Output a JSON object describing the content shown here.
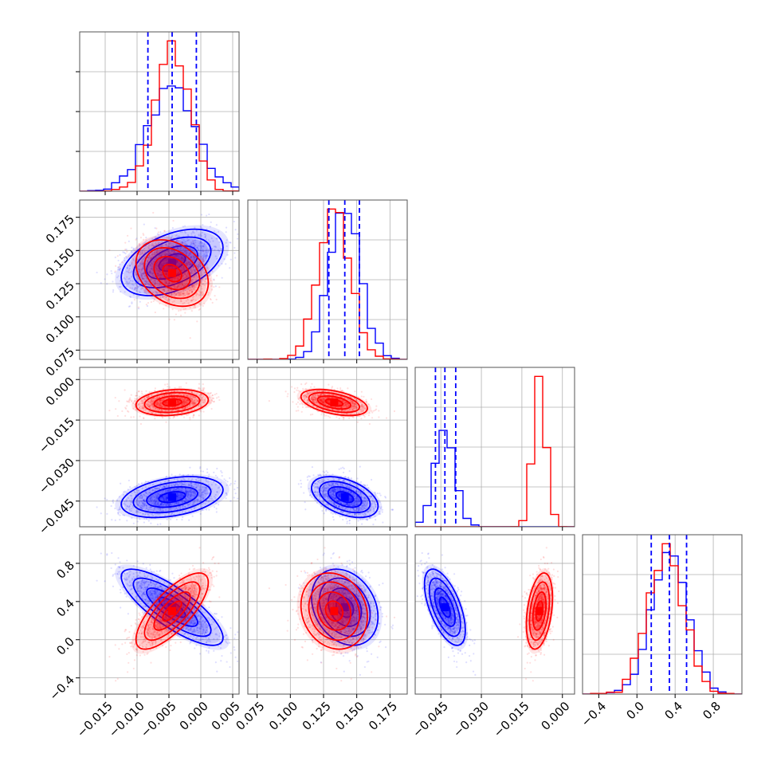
{
  "chart_data": {
    "type": "corner",
    "colors": {
      "blue": "#0000ff",
      "red": "#ff0000"
    },
    "parameters": [
      {
        "range": [
          -0.019,
          0.006
        ],
        "ticks": [
          -0.015,
          -0.01,
          -0.005,
          0.0,
          0.005
        ],
        "tick_labels": [
          "−0.015",
          "−0.010",
          "−0.005",
          "0.000",
          "0.005"
        ]
      },
      {
        "range": [
          0.068,
          0.188
        ],
        "ticks": [
          0.075,
          0.1,
          0.125,
          0.15,
          0.175
        ],
        "tick_labels": [
          "0.075",
          "0.100",
          "0.125",
          "0.150",
          "0.175"
        ]
      },
      {
        "range": [
          -0.0545,
          0.0045
        ],
        "ticks": [
          -0.045,
          -0.03,
          -0.015,
          0.0
        ],
        "tick_labels": [
          "−0.045",
          "−0.030",
          "−0.015",
          "0.000"
        ]
      },
      {
        "range": [
          -0.57,
          1.1
        ],
        "ticks": [
          -0.4,
          0.0,
          0.4,
          0.8
        ],
        "tick_labels": [
          "−0.4",
          "0.0",
          "0.4",
          "0.8"
        ]
      }
    ],
    "series": [
      {
        "name": "",
        "color": "#0000ff",
        "mean": [
          -0.0045,
          0.141,
          -0.0435,
          0.34
        ],
        "sd": [
          0.0038,
          0.0119,
          0.0036,
          0.19
        ],
        "corr": [
          [
            1.0,
            0.45,
            0.35,
            -0.8
          ],
          [
            0.45,
            1.0,
            -0.45,
            -0.25
          ],
          [
            0.35,
            -0.45,
            1.0,
            -0.6
          ],
          [
            -0.8,
            -0.25,
            -0.6,
            1.0
          ]
        ],
        "quantile_lines": [
          [
            -0.0083,
            -0.0045,
            -0.0007
          ],
          [
            0.129,
            0.141,
            0.152
          ],
          [
            -0.047,
            -0.0435,
            -0.0395
          ],
          [
            0.15,
            0.34,
            0.52
          ]
        ]
      },
      {
        "name": "",
        "color": "#ff0000",
        "mean": [
          -0.0045,
          0.133,
          -0.0085,
          0.3
        ],
        "sd": [
          0.0027,
          0.0119,
          0.0023,
          0.19
        ],
        "corr": [
          [
            1.0,
            -0.3,
            0.2,
            0.75
          ],
          [
            -0.3,
            1.0,
            -0.45,
            -0.15
          ],
          [
            0.2,
            -0.45,
            1.0,
            0.35
          ],
          [
            0.75,
            -0.15,
            0.35,
            1.0
          ]
        ],
        "quantile_lines": []
      }
    ],
    "grid": true
  }
}
